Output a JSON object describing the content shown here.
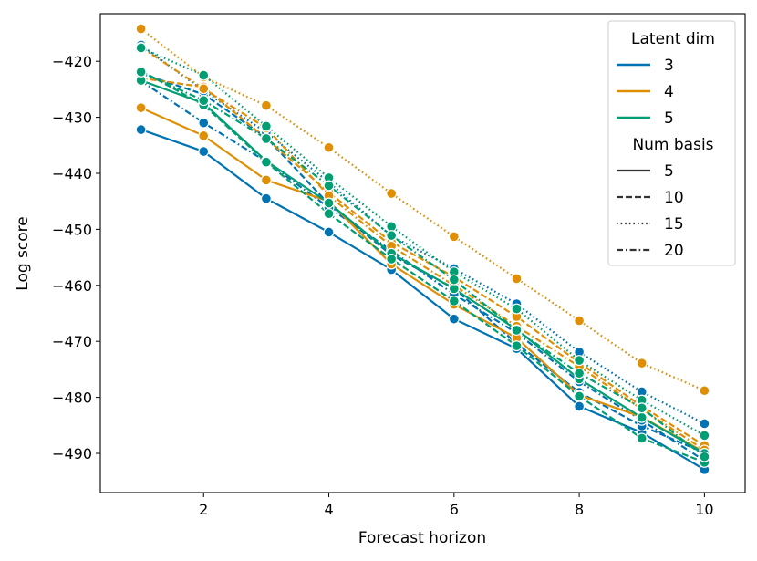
{
  "chart_data": {
    "type": "line",
    "title": "",
    "xlabel": "Forecast horizon",
    "ylabel": "Log score",
    "x": [
      1,
      2,
      3,
      4,
      5,
      6,
      7,
      8,
      9,
      10
    ],
    "xlim": [
      0.35,
      10.65
    ],
    "ylim": [
      -497,
      -411.5
    ],
    "xticks": [
      2,
      4,
      6,
      8,
      10
    ],
    "yticks": [
      -420,
      -430,
      -440,
      -450,
      -460,
      -470,
      -480,
      -490
    ],
    "xtick_labels": [
      "2",
      "4",
      "6",
      "8",
      "10"
    ],
    "ytick_labels": [
      "−420",
      "−430",
      "−440",
      "−450",
      "−460",
      "−470",
      "−480",
      "−490"
    ],
    "colors": {
      "3": "#0173b2",
      "4": "#de8f05",
      "5": "#029e73"
    },
    "series": [
      {
        "name": "Latent 3, basis 5",
        "latent_dim": "3",
        "num_basis": "5",
        "values": [
          -432.2,
          -436.1,
          -444.5,
          -450.5,
          -457.2,
          -466.0,
          -471.3,
          -481.6,
          -486.3,
          -492.9
        ]
      },
      {
        "name": "Latent 3, basis 10",
        "latent_dim": "3",
        "num_basis": "10",
        "values": [
          -422.2,
          -425.9,
          -433.6,
          -445.5,
          -454.6,
          -460.5,
          -470.4,
          -479.1,
          -485.1,
          -489.9
        ]
      },
      {
        "name": "Latent 3, basis 15",
        "latent_dim": "3",
        "num_basis": "15",
        "values": [
          -417.1,
          -425.3,
          -432.7,
          -441.6,
          -451.2,
          -457.0,
          -463.3,
          -471.9,
          -479.0,
          -484.7
        ]
      },
      {
        "name": "Latent 3, basis 20",
        "latent_dim": "3",
        "num_basis": "20",
        "values": [
          -423.5,
          -431.0,
          -437.9,
          -446.1,
          -453.8,
          -461.6,
          -468.5,
          -477.2,
          -484.1,
          -491.3
        ]
      },
      {
        "name": "Latent 4, basis 5",
        "latent_dim": "4",
        "num_basis": "5",
        "values": [
          -428.3,
          -433.3,
          -441.2,
          -445.0,
          -456.2,
          -463.4,
          -469.4,
          -479.6,
          -483.5,
          -489.8
        ]
      },
      {
        "name": "Latent 4, basis 10",
        "latent_dim": "4",
        "num_basis": "10",
        "values": [
          -423.0,
          -424.6,
          -433.8,
          -443.4,
          -452.3,
          -458.5,
          -465.6,
          -473.8,
          -481.6,
          -488.6
        ]
      },
      {
        "name": "Latent 4, basis 15",
        "latent_dim": "4",
        "num_basis": "15",
        "values": [
          -414.2,
          -422.8,
          -427.9,
          -435.4,
          -443.6,
          -451.3,
          -458.8,
          -466.3,
          -473.9,
          -478.8
        ]
      },
      {
        "name": "Latent 4, basis 20",
        "latent_dim": "4",
        "num_basis": "20",
        "values": [
          -417.5,
          -424.9,
          -431.9,
          -444.0,
          -453.0,
          -460.0,
          -467.3,
          -474.5,
          -482.1,
          -489.4
        ]
      },
      {
        "name": "Latent 5, basis 5",
        "latent_dim": "5",
        "num_basis": "5",
        "values": [
          -423.4,
          -427.5,
          -437.8,
          -445.3,
          -454.3,
          -460.6,
          -467.9,
          -476.7,
          -483.6,
          -490.0
        ]
      },
      {
        "name": "Latent 5, basis 10",
        "latent_dim": "5",
        "num_basis": "10",
        "values": [
          -421.7,
          -427.8,
          -438.0,
          -447.2,
          -455.3,
          -462.8,
          -470.8,
          -479.8,
          -487.3,
          -491.6
        ]
      },
      {
        "name": "Latent 5, basis 15",
        "latent_dim": "5",
        "num_basis": "15",
        "values": [
          -417.6,
          -422.5,
          -431.6,
          -440.8,
          -449.5,
          -457.6,
          -464.2,
          -473.4,
          -480.5,
          -486.8
        ]
      },
      {
        "name": "Latent 5, basis 20",
        "latent_dim": "5",
        "num_basis": "20",
        "values": [
          -421.9,
          -427.0,
          -433.8,
          -442.2,
          -451.1,
          -459.0,
          -468.0,
          -475.7,
          -481.9,
          -490.6
        ]
      }
    ],
    "legend": {
      "placement": "top-right",
      "hue_title": "Latent dim",
      "hue_entries": [
        {
          "label": "3",
          "color": "#0173b2"
        },
        {
          "label": "4",
          "color": "#de8f05"
        },
        {
          "label": "5",
          "color": "#029e73"
        }
      ],
      "style_title": "Num basis",
      "style_entries": [
        {
          "label": "5",
          "dash": "solid"
        },
        {
          "label": "10",
          "dash": "dashed"
        },
        {
          "label": "15",
          "dash": "dotted"
        },
        {
          "label": "20",
          "dash": "dashdot"
        }
      ]
    }
  }
}
